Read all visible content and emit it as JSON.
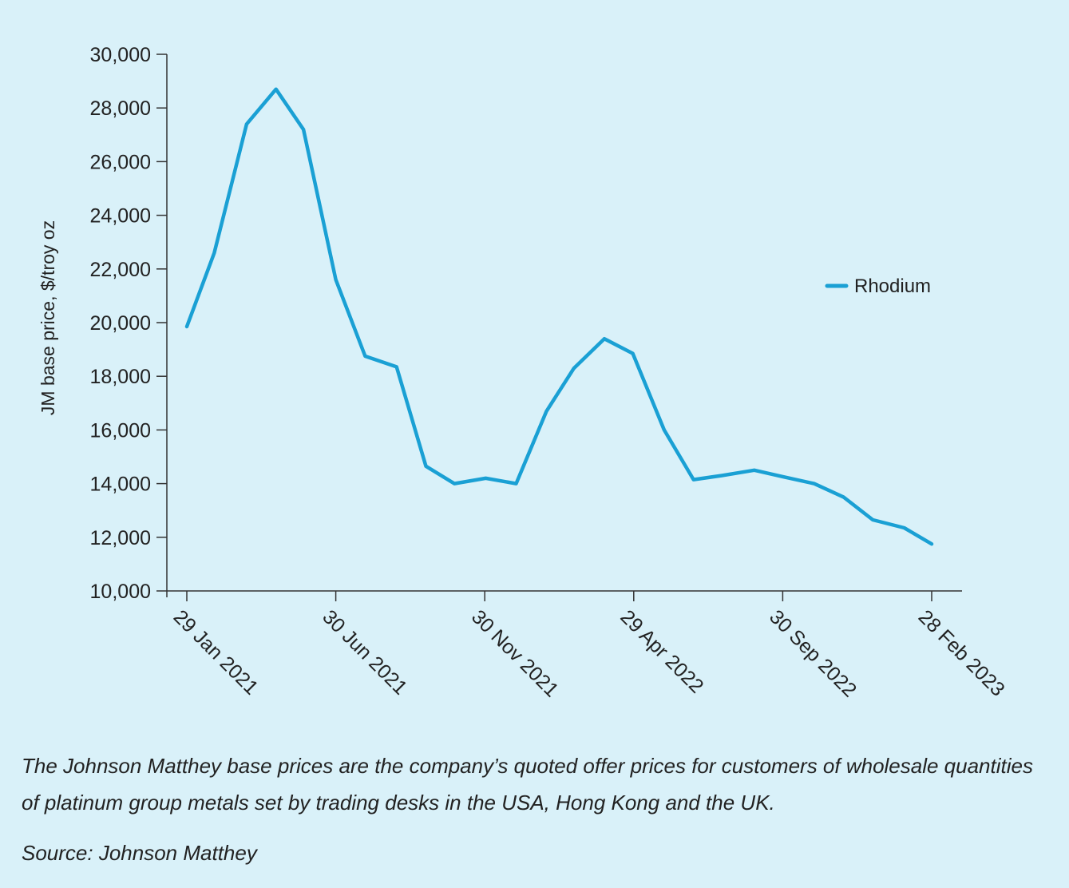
{
  "chart_data": {
    "type": "line",
    "ylabel": "JM base price, $/troy oz",
    "xlabel": "",
    "ylim": [
      10000,
      30000
    ],
    "y_ticks": [
      "10,000",
      "12,000",
      "14,000",
      "16,000",
      "18,000",
      "20,000",
      "22,000",
      "24,000",
      "26,000",
      "28,000",
      "30,000"
    ],
    "x_tick_labels": [
      "29 Jan 2021",
      "30 Jun 2021",
      "30 Nov 2021",
      "29 Apr 2022",
      "30 Sep 2022",
      "28 Feb 2023"
    ],
    "x": [
      "2021-01-29",
      "2021-02-26",
      "2021-03-31",
      "2021-04-30",
      "2021-05-28",
      "2021-06-30",
      "2021-07-30",
      "2021-08-31",
      "2021-09-30",
      "2021-10-29",
      "2021-11-30",
      "2021-12-31",
      "2022-01-31",
      "2022-02-28",
      "2022-03-31",
      "2022-04-29",
      "2022-05-31",
      "2022-06-30",
      "2022-07-29",
      "2022-08-31",
      "2022-09-30",
      "2022-10-31",
      "2022-11-30",
      "2022-12-30",
      "2023-01-31",
      "2023-02-28"
    ],
    "series": [
      {
        "name": "Rhodium",
        "color": "#1aa0d4",
        "values": [
          19850,
          22600,
          27400,
          28700,
          27200,
          21600,
          18750,
          18350,
          14650,
          14000,
          14200,
          14000,
          16700,
          18300,
          19400,
          18850,
          16000,
          14150,
          14300,
          14500,
          14250,
          14000,
          13500,
          12650,
          12350,
          11750
        ]
      }
    ],
    "legend_position": "right",
    "grid": false
  },
  "caption": "The Johnson Matthey base prices are the company’s quoted offer prices for customers of wholesale quantities of platinum group metals set by trading desks in the USA, Hong Kong and the UK.",
  "source": "Source: Johnson Matthey",
  "colors": {
    "background": "#d9f1f9",
    "line": "#1aa0d4",
    "axis": "#333333"
  }
}
